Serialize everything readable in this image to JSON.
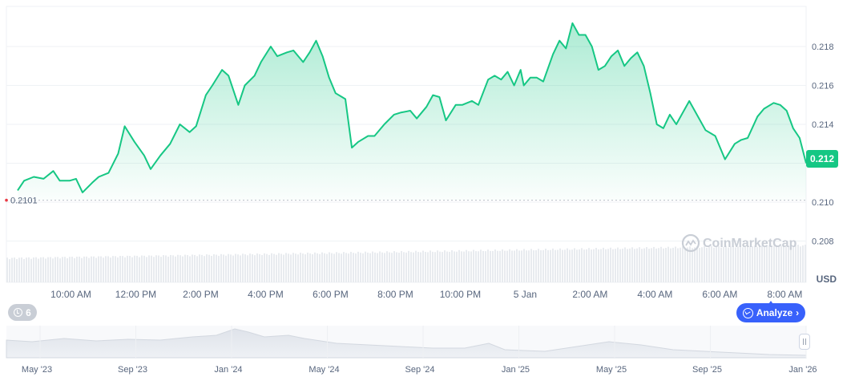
{
  "chart_data": {
    "type": "area",
    "currency_label": "USD",
    "watermark": "CoinMarketCap",
    "y_ticks": [
      0.208,
      0.21,
      0.212,
      0.214,
      0.216,
      0.218
    ],
    "y_tick_labels": [
      "0.208",
      "0.210",
      "0.212",
      "0.214",
      "0.216",
      "0.218"
    ],
    "ylim": [
      0.2065,
      0.2194
    ],
    "current_price_label": "0.212",
    "current_price": 0.2121,
    "reference_price_label": "0.2101",
    "reference_price": 0.2101,
    "x_ticks": [
      "10:00 AM",
      "12:00 PM",
      "2:00 PM",
      "4:00 PM",
      "6:00 PM",
      "8:00 PM",
      "10:00 PM",
      "5 Jan",
      "2:00 AM",
      "4:00 AM",
      "6:00 AM",
      "8:00 AM"
    ],
    "x_tick_hours": [
      1,
      3,
      5,
      7,
      9,
      11,
      13,
      15,
      17,
      19,
      21,
      23
    ],
    "x_range_hours": [
      0,
      24.3
    ],
    "series": [
      {
        "x": [
          0.0,
          0.2,
          0.5,
          0.8,
          1.1,
          1.3,
          1.6,
          1.8,
          2.0,
          2.3,
          2.5,
          2.8,
          3.1,
          3.3,
          3.6,
          3.9,
          4.1,
          4.4,
          4.7,
          5.0,
          5.3,
          5.5,
          5.8,
          6.0,
          6.3,
          6.5,
          6.8,
          7.0,
          7.3,
          7.5,
          7.8,
          8.0,
          8.3,
          8.5,
          8.8,
          9.0,
          9.2,
          9.4,
          9.6,
          9.8,
          10.0,
          10.1,
          10.3,
          10.5,
          10.8,
          11.0,
          11.3,
          11.6,
          11.8,
          12.1,
          12.3,
          12.6,
          12.8,
          13.0,
          13.2,
          13.5,
          13.7,
          14.0,
          14.2,
          14.5,
          14.7,
          14.9,
          15.1,
          15.3,
          15.5,
          15.6,
          15.8,
          16.0,
          16.2,
          16.5,
          16.7,
          16.9,
          17.1,
          17.3,
          17.5,
          17.7,
          17.9,
          18.1,
          18.3,
          18.5,
          18.7,
          18.9,
          19.1,
          19.3,
          19.5,
          19.7,
          19.9,
          20.1,
          20.3,
          20.5,
          20.7,
          21.0,
          21.2,
          21.5,
          21.8,
          22.1,
          22.3,
          22.5,
          22.8,
          23.0,
          23.3,
          23.5,
          23.7,
          23.9,
          24.1,
          24.3
        ],
        "values": [
          0.2106,
          0.2111,
          0.2113,
          0.2112,
          0.2116,
          0.2111,
          0.2111,
          0.2112,
          0.2105,
          0.211,
          0.2113,
          0.2115,
          0.2125,
          0.2139,
          0.2131,
          0.2124,
          0.2117,
          0.2124,
          0.213,
          0.214,
          0.2136,
          0.2139,
          0.2155,
          0.216,
          0.2168,
          0.2165,
          0.215,
          0.216,
          0.2165,
          0.2172,
          0.218,
          0.2175,
          0.2177,
          0.2178,
          0.2172,
          0.2177,
          0.2183,
          0.2175,
          0.2164,
          0.2156,
          0.2154,
          0.2153,
          0.2128,
          0.2131,
          0.2134,
          0.2134,
          0.214,
          0.2145,
          0.2146,
          0.2147,
          0.2143,
          0.2149,
          0.2155,
          0.2154,
          0.2142,
          0.215,
          0.215,
          0.2152,
          0.215,
          0.2163,
          0.2165,
          0.2163,
          0.2167,
          0.216,
          0.2168,
          0.216,
          0.2164,
          0.2164,
          0.2162,
          0.2176,
          0.2183,
          0.2179,
          0.2192,
          0.2186,
          0.2186,
          0.218,
          0.2168,
          0.217,
          0.2175,
          0.2178,
          0.217,
          0.2174,
          0.2177,
          0.217,
          0.2156,
          0.214,
          0.2138,
          0.2145,
          0.214,
          0.2146,
          0.2152,
          0.2143,
          0.2137,
          0.2134,
          0.2122,
          0.213,
          0.2132,
          0.2133,
          0.2144,
          0.2148,
          0.2151,
          0.215,
          0.2147,
          0.2138,
          0.2133,
          0.212
        ]
      }
    ],
    "volume_ticks_baseline": "Volume bars behind price",
    "navigator": {
      "labels": [
        "May '23",
        "Sep '23",
        "Jan '24",
        "May '24",
        "Sep '24",
        "Jan '25",
        "May '25",
        "Sep '25",
        "Jan '26"
      ]
    },
    "events_count": "6",
    "analyze_label": "Analyze",
    "colors": {
      "line": "#16c784",
      "area_top": "#16c784",
      "price_tag": "#16c784",
      "analyze": "#3861fb",
      "reference_dot": "#ea3943",
      "grid": "#eff2f5",
      "axis_text": "#58667e"
    }
  }
}
